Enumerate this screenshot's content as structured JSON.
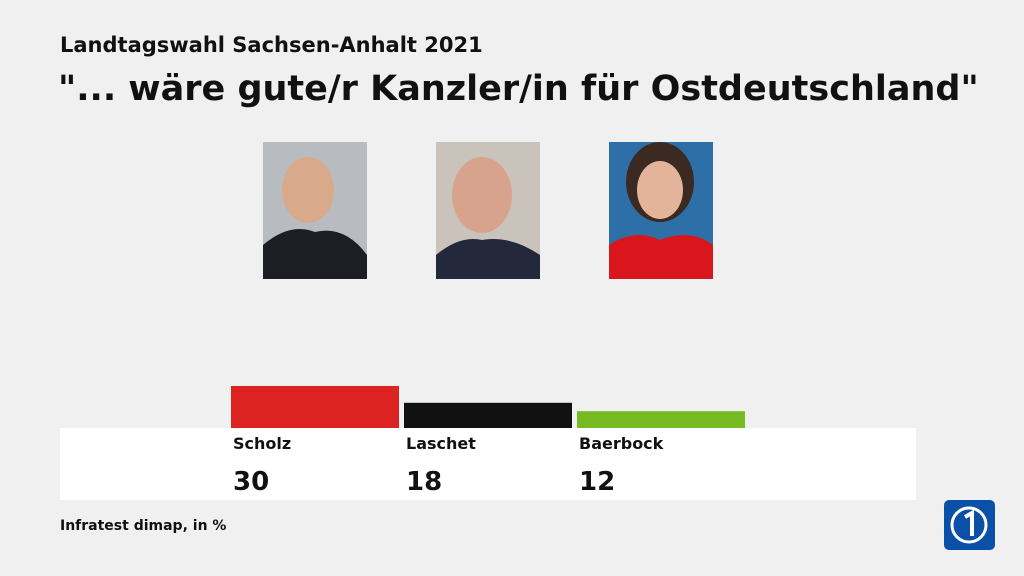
{
  "chart_data": {
    "type": "bar",
    "title": "Landtagswahl Sachsen-Anhalt 2021",
    "subtitle": "\"... wäre gute/r Kanzler/in für Ostdeutschland\"",
    "categories": [
      "Scholz",
      "Laschet",
      "Baerbock"
    ],
    "values": [
      30,
      18,
      12
    ],
    "colors": [
      "#dd2222",
      "#111111",
      "#77bb22"
    ],
    "source": "Infratest dimap, in %"
  }
}
